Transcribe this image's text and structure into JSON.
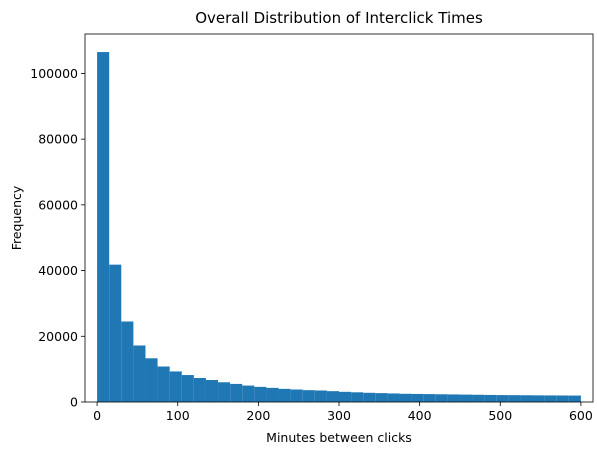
{
  "chart_data": {
    "type": "bar",
    "title": "Overall Distribution of Interclick Times",
    "xlabel": "Minutes between clicks",
    "ylabel": "Frequency",
    "xlim": [
      -15,
      615
    ],
    "ylim": [
      0,
      112000
    ],
    "bin_width": 15,
    "bins_start": [
      0,
      15,
      30,
      45,
      60,
      75,
      90,
      105,
      120,
      135,
      150,
      165,
      180,
      195,
      210,
      225,
      240,
      255,
      270,
      285,
      300,
      315,
      330,
      345,
      360,
      375,
      390,
      405,
      420,
      435,
      450,
      465,
      480,
      495,
      510,
      525,
      540,
      555,
      570,
      585
    ],
    "values": [
      106500,
      41800,
      24500,
      17200,
      13300,
      10800,
      9300,
      8200,
      7300,
      6700,
      6000,
      5500,
      5000,
      4600,
      4300,
      4000,
      3800,
      3600,
      3500,
      3300,
      3100,
      2950,
      2800,
      2700,
      2600,
      2500,
      2450,
      2400,
      2350,
      2300,
      2250,
      2200,
      2150,
      2100,
      2080,
      2050,
      2020,
      2000,
      1980,
      1960
    ],
    "xticks": [
      0,
      100,
      200,
      300,
      400,
      500,
      600
    ],
    "yticks": [
      0,
      20000,
      40000,
      60000,
      80000,
      100000
    ],
    "grid": false,
    "legend": "none",
    "bar_color": "#1f77b4"
  }
}
